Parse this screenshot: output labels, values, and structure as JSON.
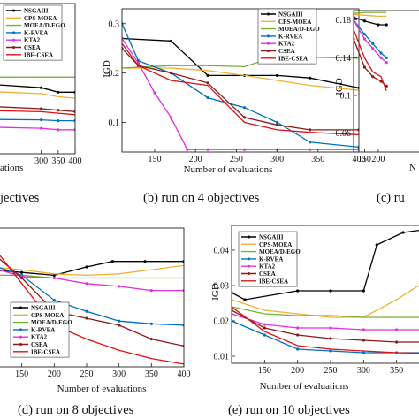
{
  "chart_data": [
    {
      "type": "line",
      "caption": "jectives",
      "xlabel": "ations",
      "ylabel": "",
      "xlim": [
        100,
        400
      ],
      "ylim": [
        0.0,
        0.5
      ],
      "xticks": [
        300,
        350,
        400
      ],
      "yticks": [],
      "grid": false,
      "legend": {
        "placement": "top-left",
        "entries": [
          "NSGAIII",
          "CPS-MOEA",
          "MOEA/D-EGO",
          "K-RVEA",
          "KTA2",
          "CSEA",
          "IBE-CSEA"
        ]
      },
      "series": [
        {
          "name": "NSGAIII",
          "color": "#000000",
          "marker": true,
          "x": [
            100,
            300,
            350,
            400
          ],
          "y": [
            0.235,
            0.22,
            0.205,
            0.205
          ]
        },
        {
          "name": "CPS-MOEA",
          "color": "#f0b030",
          "marker": false,
          "x": [
            100,
            300,
            350,
            400
          ],
          "y": [
            0.21,
            0.2,
            0.19,
            0.185
          ]
        },
        {
          "name": "MOEA/D-EGO",
          "color": "#78b030",
          "marker": false,
          "x": [
            100,
            300,
            350,
            400
          ],
          "y": [
            0.255,
            0.255,
            0.255,
            0.255
          ]
        },
        {
          "name": "K-RVEA",
          "color": "#0070c0",
          "marker": true,
          "x": [
            100,
            300,
            350,
            400
          ],
          "y": [
            0.115,
            0.113,
            0.11,
            0.11
          ]
        },
        {
          "name": "KTA2",
          "color": "#e030e0",
          "marker": true,
          "x": [
            100,
            300,
            350,
            400
          ],
          "y": [
            0.09,
            0.085,
            0.08,
            0.08
          ]
        },
        {
          "name": "CSEA",
          "color": "#8b1a1a",
          "marker": true,
          "x": [
            100,
            300,
            350,
            400
          ],
          "y": [
            0.16,
            0.15,
            0.145,
            0.14
          ]
        },
        {
          "name": "IBE-CSEA",
          "color": "#e01010",
          "marker": false,
          "x": [
            100,
            300,
            350,
            400
          ],
          "y": [
            0.145,
            0.14,
            0.135,
            0.13
          ]
        }
      ]
    },
    {
      "type": "line",
      "caption": "(b) run on 4 objectives",
      "xlabel": "Number of evaluations",
      "ylabel": "IGD",
      "xlim": [
        110,
        400
      ],
      "ylim": [
        0.04,
        0.33
      ],
      "xticks": [
        150,
        200,
        250,
        300,
        350,
        400
      ],
      "yticks": [
        0.1,
        0.2,
        0.3
      ],
      "grid": false,
      "legend": {
        "placement": "top-right",
        "entries": [
          "NSGAIII",
          "CPS-MOEA",
          "MOEA/D-EGO",
          "K-RVEA",
          "KTA2",
          "CSEA",
          "IBE-CSEA"
        ]
      },
      "series": [
        {
          "name": "NSGAIII",
          "color": "#000000",
          "marker": true,
          "x": [
            110,
            170,
            215,
            260,
            300,
            340,
            400
          ],
          "y": [
            0.27,
            0.265,
            0.195,
            0.195,
            0.195,
            0.19,
            0.17
          ]
        },
        {
          "name": "CPS-MOEA",
          "color": "#f0b030",
          "marker": false,
          "x": [
            110,
            170,
            215,
            260,
            300,
            340,
            400
          ],
          "y": [
            0.21,
            0.21,
            0.205,
            0.195,
            0.185,
            0.175,
            0.165
          ]
        },
        {
          "name": "MOEA/D-EGO",
          "color": "#78b030",
          "marker": false,
          "x": [
            110,
            170,
            215,
            260,
            300,
            340,
            400
          ],
          "y": [
            0.21,
            0.215,
            0.215,
            0.213,
            0.235,
            0.232,
            0.23
          ]
        },
        {
          "name": "K-RVEA",
          "color": "#0070c0",
          "marker": true,
          "x": [
            110,
            130,
            170,
            215,
            260,
            300,
            340,
            400
          ],
          "y": [
            0.3,
            0.225,
            0.2,
            0.15,
            0.13,
            0.1,
            0.06,
            0.05
          ]
        },
        {
          "name": "KTA2",
          "color": "#e030e0",
          "marker": true,
          "x": [
            110,
            130,
            150,
            170,
            190,
            215,
            260,
            300,
            340,
            400
          ],
          "y": [
            0.27,
            0.22,
            0.16,
            0.11,
            0.045,
            0.045,
            0.045,
            0.045,
            0.045,
            0.045
          ]
        },
        {
          "name": "CSEA",
          "color": "#8b1a1a",
          "marker": true,
          "x": [
            110,
            130,
            170,
            215,
            260,
            300,
            340,
            400
          ],
          "y": [
            0.25,
            0.215,
            0.2,
            0.18,
            0.11,
            0.095,
            0.085,
            0.085
          ]
        },
        {
          "name": "IBE-CSEA",
          "color": "#e01010",
          "marker": false,
          "x": [
            110,
            130,
            170,
            215,
            260,
            300,
            340,
            400
          ],
          "y": [
            0.26,
            0.215,
            0.185,
            0.175,
            0.1,
            0.085,
            0.08,
            0.075
          ]
        }
      ]
    },
    {
      "type": "line",
      "caption": "(c) ru",
      "xlabel": "N",
      "ylabel": "IGD",
      "xlim": [
        110,
        400
      ],
      "ylim": [
        0.04,
        0.19
      ],
      "xticks": [
        150,
        200
      ],
      "yticks": [
        0.06,
        0.1,
        0.14,
        0.18
      ],
      "grid": false,
      "legend": {
        "placement": "top-right",
        "entries": []
      },
      "series": [
        {
          "name": "NSGAIII",
          "color": "#000000",
          "marker": true,
          "x": [
            110,
            150,
            200,
            230
          ],
          "y": [
            0.183,
            0.179,
            0.175,
            0.175
          ]
        },
        {
          "name": "CPS-MOEA",
          "color": "#f0b030",
          "marker": false,
          "x": [
            110,
            150,
            200,
            230
          ],
          "y": [
            0.186,
            0.185,
            0.184,
            0.184
          ]
        },
        {
          "name": "MOEA/D-EGO",
          "color": "#78b030",
          "marker": false,
          "x": [
            110,
            150,
            200,
            230
          ],
          "y": [
            0.187,
            0.188,
            0.188,
            0.188
          ]
        },
        {
          "name": "K-RVEA",
          "color": "#0070c0",
          "marker": true,
          "x": [
            110,
            150,
            180,
            210,
            230
          ],
          "y": [
            0.18,
            0.165,
            0.155,
            0.145,
            0.14
          ]
        },
        {
          "name": "KTA2",
          "color": "#e030e0",
          "marker": true,
          "x": [
            110,
            150,
            180,
            210,
            230
          ],
          "y": [
            0.18,
            0.16,
            0.15,
            0.14,
            0.135
          ]
        },
        {
          "name": "CSEA",
          "color": "#8b1a1a",
          "marker": true,
          "x": [
            110,
            150,
            180,
            210,
            230
          ],
          "y": [
            0.16,
            0.13,
            0.12,
            0.115,
            0.11
          ]
        },
        {
          "name": "IBE-CSEA",
          "color": "#e01010",
          "marker": false,
          "x": [
            110,
            150,
            180,
            210,
            230
          ],
          "y": [
            0.17,
            0.14,
            0.125,
            0.12,
            0.105
          ]
        }
      ]
    },
    {
      "type": "line",
      "caption": "(d) run on 8 objectives",
      "xlabel": "Number of evaluations",
      "ylabel": "",
      "xlim": [
        100,
        400
      ],
      "ylim": [
        0.0,
        1.0
      ],
      "xticks": [
        150,
        200,
        250,
        300,
        350,
        400
      ],
      "yticks": [],
      "grid": false,
      "legend": {
        "placement": "bottom-left",
        "entries": [
          "NSGAIII",
          "CPS-MOEA",
          "MOEA/D-EGO",
          "K-RVEA",
          "KTA2",
          "CSEA",
          "IBE-CSEA"
        ]
      },
      "series": [
        {
          "name": "NSGAIII",
          "color": "#000000",
          "marker": true,
          "x": [
            100,
            150,
            200,
            250,
            290,
            340,
            400
          ],
          "y": [
            0.7,
            0.68,
            0.66,
            0.72,
            0.76,
            0.76,
            0.76
          ]
        },
        {
          "name": "CPS-MOEA",
          "color": "#f0b030",
          "marker": false,
          "x": [
            100,
            150,
            200,
            250,
            300,
            350,
            400
          ],
          "y": [
            0.72,
            0.7,
            0.67,
            0.66,
            0.67,
            0.7,
            0.73
          ]
        },
        {
          "name": "MOEA/D-EGO",
          "color": "#78b030",
          "marker": false,
          "x": [
            100,
            150,
            200,
            250,
            300,
            350,
            400
          ],
          "y": [
            0.66,
            0.66,
            0.64,
            0.64,
            0.64,
            0.64,
            0.64
          ]
        },
        {
          "name": "K-RVEA",
          "color": "#0070c0",
          "marker": true,
          "x": [
            100,
            150,
            200,
            250,
            300,
            350,
            400
          ],
          "y": [
            0.74,
            0.66,
            0.48,
            0.4,
            0.33,
            0.31,
            0.3
          ]
        },
        {
          "name": "KTA2",
          "color": "#e030e0",
          "marker": true,
          "x": [
            100,
            150,
            200,
            250,
            300,
            350,
            400
          ],
          "y": [
            0.72,
            0.65,
            0.64,
            0.6,
            0.58,
            0.55,
            0.55
          ]
        },
        {
          "name": "CSEA",
          "color": "#8b1a1a",
          "marker": true,
          "x": [
            100,
            150,
            200,
            250,
            300,
            350,
            400
          ],
          "y": [
            0.84,
            0.64,
            0.4,
            0.35,
            0.3,
            0.2,
            0.15
          ]
        },
        {
          "name": "IBE-CSEA",
          "color": "#e01010",
          "marker": false,
          "x": [
            100,
            150,
            200,
            250,
            300,
            350,
            400
          ],
          "y": [
            0.9,
            0.6,
            0.3,
            0.2,
            0.12,
            0.06,
            0.02
          ]
        }
      ]
    },
    {
      "type": "line",
      "caption": "(e) run on 10 objectives",
      "xlabel": "Number of evaluations",
      "ylabel": "IGD",
      "xlim": [
        100,
        400
      ],
      "ylim": [
        0.008,
        0.047
      ],
      "xticks": [
        150,
        200,
        250,
        300,
        350
      ],
      "yticks": [
        0.01,
        0.02,
        0.03,
        0.04
      ],
      "grid": false,
      "legend": {
        "placement": "top-left",
        "entries": [
          "NSGAIII",
          "CPS-MOEA",
          "MOEA/D-EGO",
          "K-RVEA",
          "KTA2",
          "CSEA",
          "IBE-CSEA"
        ]
      },
      "series": [
        {
          "name": "NSGAIII",
          "color": "#000000",
          "marker": true,
          "x": [
            100,
            120,
            200,
            250,
            300,
            320,
            360,
            400
          ],
          "y": [
            0.028,
            0.026,
            0.0285,
            0.0285,
            0.0285,
            0.0415,
            0.045,
            0.046
          ]
        },
        {
          "name": "CPS-MOEA",
          "color": "#f0b030",
          "marker": false,
          "x": [
            100,
            150,
            200,
            250,
            300,
            350,
            400
          ],
          "y": [
            0.026,
            0.023,
            0.022,
            0.021,
            0.021,
            0.026,
            0.032
          ]
        },
        {
          "name": "MOEA/D-EGO",
          "color": "#78b030",
          "marker": false,
          "x": [
            100,
            150,
            200,
            250,
            300,
            350,
            400
          ],
          "y": [
            0.024,
            0.022,
            0.0215,
            0.0215,
            0.021,
            0.021,
            0.021
          ]
        },
        {
          "name": "K-RVEA",
          "color": "#0070c0",
          "marker": true,
          "x": [
            100,
            150,
            200,
            250,
            300,
            350,
            400
          ],
          "y": [
            0.02,
            0.016,
            0.012,
            0.0115,
            0.011,
            0.011,
            0.011
          ]
        },
        {
          "name": "KTA2",
          "color": "#e030e0",
          "marker": true,
          "x": [
            100,
            150,
            200,
            250,
            300,
            350,
            400
          ],
          "y": [
            0.022,
            0.019,
            0.018,
            0.018,
            0.0175,
            0.0175,
            0.0175
          ]
        },
        {
          "name": "CSEA",
          "color": "#8b1a1a",
          "marker": true,
          "x": [
            100,
            150,
            200,
            250,
            300,
            350,
            400
          ],
          "y": [
            0.023,
            0.018,
            0.016,
            0.015,
            0.0145,
            0.014,
            0.014
          ]
        },
        {
          "name": "IBE-CSEA",
          "color": "#e01010",
          "marker": false,
          "x": [
            100,
            150,
            200,
            250,
            300,
            350,
            400
          ],
          "y": [
            0.024,
            0.017,
            0.013,
            0.012,
            0.0115,
            0.011,
            0.0108
          ]
        }
      ]
    }
  ]
}
